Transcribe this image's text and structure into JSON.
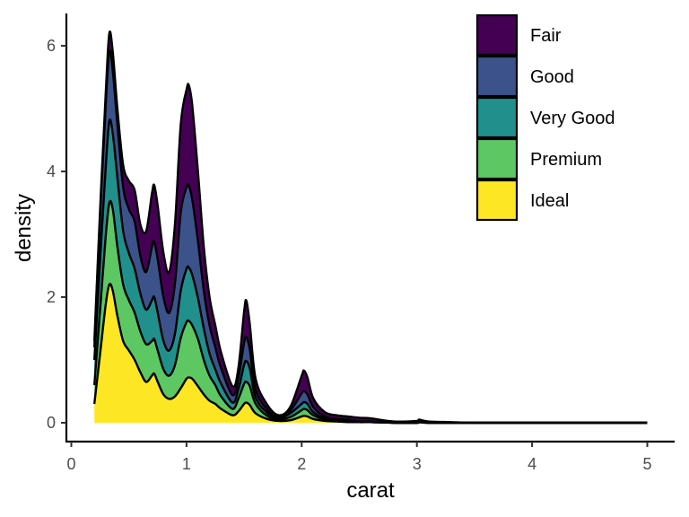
{
  "chart_data": {
    "type": "area",
    "stacked": true,
    "xlabel": "carat",
    "ylabel": "density",
    "xlim": [
      0,
      5
    ],
    "ylim": [
      0,
      6.2
    ],
    "x_ticks": [
      "0",
      "1",
      "2",
      "3",
      "4",
      "5"
    ],
    "y_ticks": [
      "0",
      "2",
      "4",
      "6"
    ],
    "legend_position": "top-right",
    "grid": false,
    "x": [
      0.2,
      0.25,
      0.3,
      0.33,
      0.36,
      0.4,
      0.45,
      0.5,
      0.55,
      0.6,
      0.65,
      0.7,
      0.72,
      0.75,
      0.8,
      0.85,
      0.9,
      0.95,
      1.0,
      1.02,
      1.05,
      1.1,
      1.15,
      1.2,
      1.25,
      1.3,
      1.4,
      1.45,
      1.5,
      1.52,
      1.55,
      1.6,
      1.7,
      1.8,
      1.9,
      2.0,
      2.02,
      2.05,
      2.1,
      2.2,
      2.3,
      2.4,
      2.5,
      2.6,
      2.8,
      3.0,
      3.02,
      3.1,
      3.3,
      3.5,
      4.0,
      4.5,
      5.0
    ],
    "series": [
      {
        "name": "Ideal",
        "color": "#FDE725",
        "values": [
          0.3,
          1.1,
          1.9,
          2.2,
          2.1,
          1.7,
          1.3,
          1.15,
          1.0,
          0.8,
          0.65,
          0.75,
          0.78,
          0.65,
          0.45,
          0.38,
          0.42,
          0.55,
          0.7,
          0.72,
          0.7,
          0.58,
          0.45,
          0.35,
          0.3,
          0.22,
          0.12,
          0.18,
          0.3,
          0.32,
          0.28,
          0.15,
          0.06,
          0.03,
          0.04,
          0.1,
          0.11,
          0.1,
          0.06,
          0.03,
          0.02,
          0.01,
          0.01,
          0.01,
          0.0,
          0.0,
          0.01,
          0.0,
          0.0,
          0.0,
          0.0,
          0.0,
          0.0
        ]
      },
      {
        "name": "Premium",
        "color": "#5DC863",
        "values": [
          0.3,
          0.7,
          1.1,
          1.3,
          1.3,
          1.1,
          0.9,
          0.8,
          0.75,
          0.65,
          0.6,
          0.55,
          0.55,
          0.5,
          0.4,
          0.37,
          0.5,
          0.8,
          0.9,
          0.9,
          0.85,
          0.75,
          0.55,
          0.4,
          0.3,
          0.2,
          0.1,
          0.2,
          0.32,
          0.33,
          0.3,
          0.15,
          0.05,
          0.02,
          0.05,
          0.1,
          0.11,
          0.1,
          0.06,
          0.02,
          0.01,
          0.01,
          0.0,
          0.0,
          0.0,
          0.0,
          0.0,
          0.0,
          0.0,
          0.0,
          0.0,
          0.0,
          0.0
        ]
      },
      {
        "name": "Very Good",
        "color": "#21908C",
        "values": [
          0.4,
          0.8,
          1.1,
          1.3,
          1.2,
          1.1,
          0.85,
          0.75,
          0.7,
          0.6,
          0.55,
          0.65,
          0.67,
          0.6,
          0.45,
          0.4,
          0.5,
          0.75,
          0.85,
          0.85,
          0.8,
          0.65,
          0.5,
          0.35,
          0.25,
          0.2,
          0.1,
          0.15,
          0.3,
          0.33,
          0.28,
          0.1,
          0.05,
          0.02,
          0.06,
          0.1,
          0.11,
          0.1,
          0.05,
          0.02,
          0.01,
          0.01,
          0.0,
          0.0,
          0.0,
          0.0,
          0.0,
          0.0,
          0.0,
          0.0,
          0.0,
          0.0,
          0.0
        ]
      },
      {
        "name": "Good",
        "color": "#3B528B",
        "values": [
          0.2,
          0.7,
          1.0,
          1.1,
          1.0,
          0.85,
          0.7,
          0.7,
          0.75,
          0.6,
          0.6,
          0.85,
          0.88,
          0.85,
          0.7,
          0.6,
          0.8,
          1.25,
          1.3,
          1.3,
          1.2,
          0.9,
          0.6,
          0.45,
          0.35,
          0.25,
          0.12,
          0.18,
          0.35,
          0.38,
          0.3,
          0.12,
          0.05,
          0.02,
          0.04,
          0.17,
          0.17,
          0.15,
          0.08,
          0.03,
          0.02,
          0.02,
          0.01,
          0.01,
          0.0,
          0.0,
          0.01,
          0.0,
          0.0,
          0.0,
          0.0,
          0.0,
          0.0
        ]
      },
      {
        "name": "Fair",
        "color": "#440154",
        "values": [
          0.1,
          0.1,
          0.2,
          0.3,
          0.3,
          0.25,
          0.35,
          0.45,
          0.5,
          0.5,
          0.65,
          0.85,
          0.9,
          0.85,
          0.7,
          0.65,
          0.95,
          1.4,
          1.55,
          1.6,
          1.5,
          1.1,
          0.7,
          0.45,
          0.35,
          0.25,
          0.14,
          0.16,
          0.5,
          0.58,
          0.4,
          0.18,
          0.08,
          0.03,
          0.06,
          0.28,
          0.33,
          0.27,
          0.14,
          0.07,
          0.06,
          0.05,
          0.06,
          0.05,
          0.02,
          0.03,
          0.03,
          0.02,
          0.01,
          0.0,
          0.0,
          0.0,
          0.0
        ]
      }
    ]
  }
}
